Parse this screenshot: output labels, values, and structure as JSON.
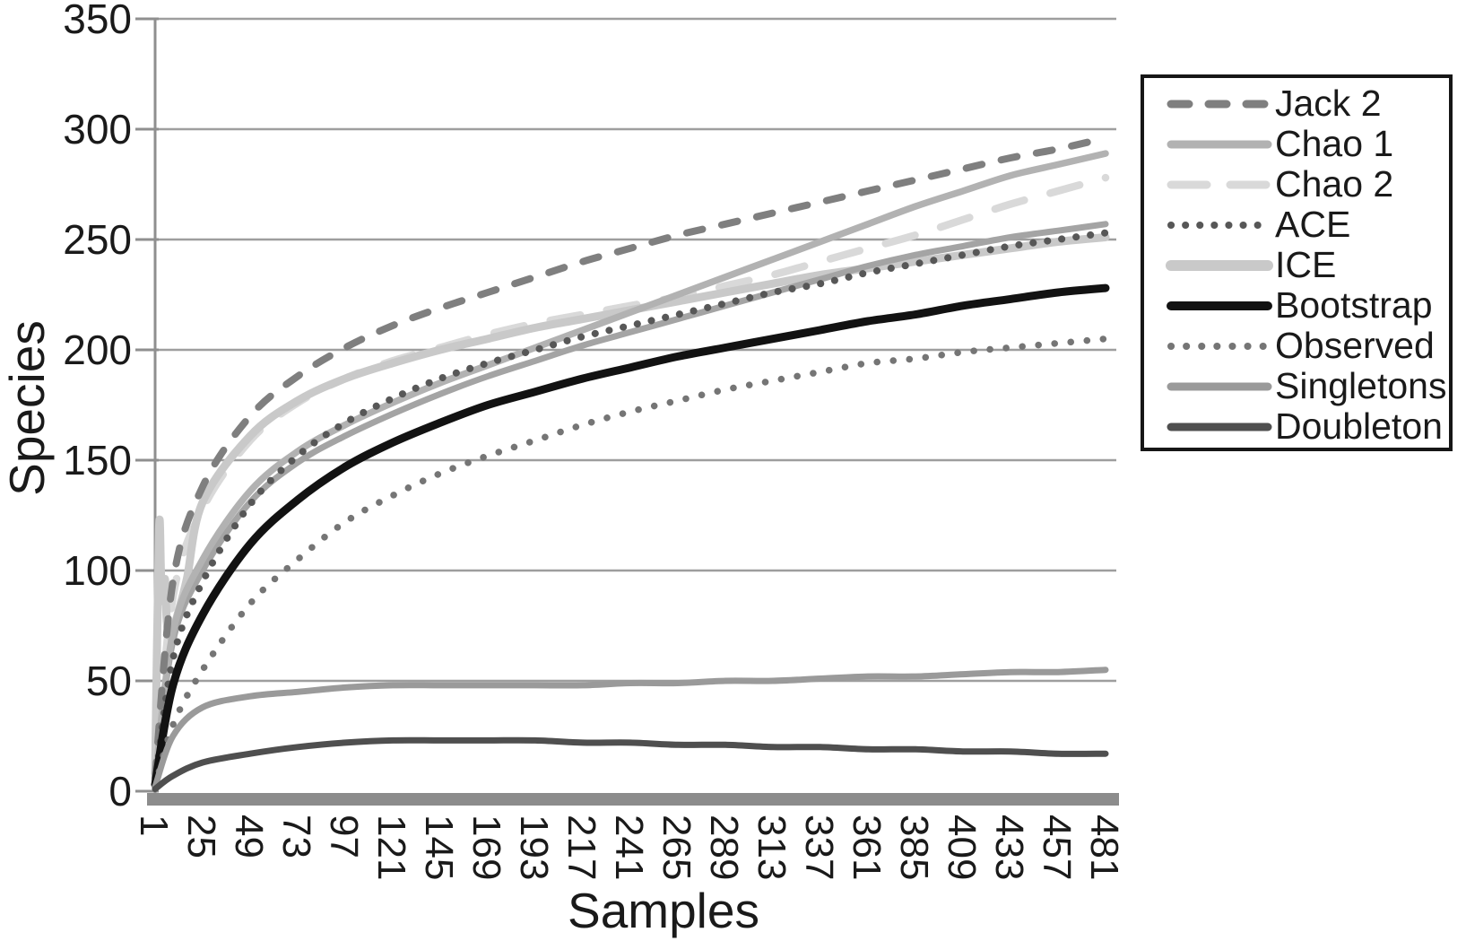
{
  "chart_data": {
    "type": "line",
    "title": "",
    "xlabel": "Samples",
    "ylabel": "Species",
    "xlim": [
      1,
      481
    ],
    "ylim": [
      0,
      350
    ],
    "x_ticks": [
      1,
      25,
      49,
      73,
      97,
      121,
      145,
      169,
      193,
      217,
      241,
      265,
      289,
      313,
      337,
      361,
      385,
      409,
      433,
      457,
      481
    ],
    "y_ticks": [
      0,
      50,
      100,
      150,
      200,
      250,
      300,
      350
    ],
    "grid": "horizontal",
    "legend_position": "right",
    "legend_border_color": "#161616",
    "axis_color": "#8f8f8f",
    "gridline_color": "#9e9e9e",
    "baseline_bar_color": "#8c8c8c",
    "text_color": "#1a1a1a",
    "series": [
      {
        "key": "chao2",
        "name": "Chao 2",
        "legend": true,
        "legend_order": 2,
        "style": {
          "color": "#d9d9d9",
          "width": 8.5,
          "dash": [
            34,
            30
          ],
          "cap": "round"
        },
        "x": [
          1,
          10,
          25,
          49,
          73,
          97,
          121,
          145,
          169,
          193,
          217,
          241,
          265,
          289,
          313,
          337,
          361,
          385,
          409,
          433,
          457,
          481
        ],
        "y": [
          5,
          88,
          128,
          159,
          176,
          187,
          195,
          201,
          207,
          212,
          216,
          220,
          224,
          229,
          234,
          240,
          246,
          252,
          259,
          266,
          272,
          278
        ]
      },
      {
        "key": "ice",
        "name": "ICE",
        "legend": true,
        "legend_order": 4,
        "style": {
          "color": "#c9c9c9",
          "width": 9,
          "dash": null,
          "cap": "round"
        },
        "x": [
          1,
          3,
          4,
          5,
          6,
          7,
          9,
          12,
          17,
          25,
          49,
          73,
          97,
          121,
          145,
          169,
          193,
          217,
          241,
          265,
          289,
          313,
          337,
          361,
          385,
          409,
          433,
          457,
          481
        ],
        "y": [
          8,
          119,
          98,
          86,
          96,
          76,
          70,
          79,
          96,
          131,
          161,
          177,
          187,
          194,
          200,
          205,
          210,
          214,
          218,
          222,
          226,
          230,
          234,
          237,
          240,
          243,
          246,
          249,
          251
        ]
      },
      {
        "key": "unlabeled-gray",
        "name": "(unlabeled solid gray curve)",
        "legend": false,
        "style": {
          "color": "#a4a4a4",
          "width": 7,
          "dash": null,
          "cap": "round"
        },
        "x": [
          1,
          10,
          25,
          49,
          73,
          97,
          121,
          145,
          169,
          193,
          217,
          241,
          265,
          289,
          313,
          337,
          361,
          385,
          409,
          433,
          457,
          481
        ],
        "y": [
          5,
          68,
          100,
          131,
          149,
          161,
          171,
          180,
          188,
          195,
          202,
          208,
          214,
          220,
          226,
          232,
          238,
          243,
          247,
          251,
          254,
          257
        ]
      },
      {
        "key": "chao1",
        "name": "Chao 1",
        "legend": true,
        "legend_order": 1,
        "style": {
          "color": "#b2b2b2",
          "width": 7.5,
          "dash": null,
          "cap": "round"
        },
        "x": [
          1,
          10,
          25,
          49,
          73,
          97,
          121,
          145,
          169,
          193,
          217,
          241,
          265,
          289,
          313,
          337,
          361,
          385,
          409,
          433,
          457,
          481
        ],
        "y": [
          5,
          72,
          105,
          136,
          154,
          166,
          176,
          185,
          193,
          201,
          209,
          217,
          225,
          233,
          241,
          249,
          257,
          265,
          272,
          279,
          284,
          289
        ]
      },
      {
        "key": "jack2",
        "name": "Jack 2",
        "legend": true,
        "legend_order": 0,
        "style": {
          "color": "#7f7f7f",
          "width": 8,
          "dash": [
            18,
            22
          ],
          "cap": "round"
        },
        "x": [
          1,
          10,
          25,
          49,
          73,
          97,
          121,
          145,
          169,
          193,
          217,
          241,
          265,
          289,
          313,
          337,
          361,
          385,
          409,
          433,
          457,
          481
        ],
        "y": [
          6,
          95,
          138,
          170,
          188,
          201,
          211,
          219,
          226,
          233,
          240,
          246,
          252,
          257,
          262,
          267,
          272,
          277,
          282,
          287,
          291,
          296
        ]
      },
      {
        "key": "ace",
        "name": "ACE",
        "legend": true,
        "legend_order": 3,
        "style": {
          "color": "#575757",
          "width": 8,
          "dash": [
            0.1,
            16
          ],
          "cap": "round"
        },
        "x": [
          1,
          10,
          25,
          49,
          73,
          97,
          121,
          145,
          169,
          193,
          217,
          241,
          265,
          289,
          313,
          337,
          361,
          385,
          409,
          433,
          457,
          481
        ],
        "y": [
          3,
          60,
          95,
          130,
          152,
          167,
          178,
          187,
          194,
          200,
          206,
          211,
          216,
          221,
          226,
          230,
          235,
          239,
          243,
          247,
          250,
          253
        ]
      },
      {
        "key": "bootstrap",
        "name": "Bootstrap",
        "legend": true,
        "legend_order": 5,
        "style": {
          "color": "#121212",
          "width": 9,
          "dash": null,
          "cap": "round"
        },
        "x": [
          1,
          10,
          25,
          49,
          73,
          97,
          121,
          145,
          169,
          193,
          217,
          241,
          265,
          289,
          313,
          337,
          361,
          385,
          409,
          433,
          457,
          481
        ],
        "y": [
          3,
          48,
          80,
          112,
          132,
          147,
          158,
          167,
          175,
          181,
          187,
          192,
          197,
          201,
          205,
          209,
          213,
          216,
          220,
          223,
          226,
          228
        ]
      },
      {
        "key": "observed",
        "name": "Observed",
        "legend": true,
        "legend_order": 6,
        "style": {
          "color": "#757575",
          "width": 7.5,
          "dash": [
            0.1,
            18
          ],
          "cap": "round"
        },
        "x": [
          1,
          10,
          25,
          49,
          73,
          97,
          121,
          145,
          169,
          193,
          217,
          241,
          265,
          289,
          313,
          337,
          361,
          385,
          409,
          433,
          457,
          481
        ],
        "y": [
          2,
          30,
          55,
          85,
          105,
          122,
          134,
          144,
          152,
          159,
          166,
          172,
          177,
          182,
          186,
          190,
          194,
          196,
          199,
          201,
          203,
          205
        ]
      },
      {
        "key": "singletons",
        "name": "Singletons",
        "legend": true,
        "legend_order": 7,
        "style": {
          "color": "#9a9a9a",
          "width": 7,
          "dash": null,
          "cap": "round"
        },
        "x": [
          1,
          10,
          25,
          49,
          73,
          97,
          121,
          145,
          169,
          193,
          217,
          241,
          265,
          289,
          313,
          337,
          361,
          385,
          409,
          433,
          457,
          481
        ],
        "y": [
          2,
          25,
          38,
          43,
          45,
          47,
          48,
          48,
          48,
          48,
          48,
          49,
          49,
          50,
          50,
          51,
          52,
          52,
          53,
          54,
          54,
          55
        ]
      },
      {
        "key": "doubleton",
        "name": "Doubleton",
        "legend": true,
        "legend_order": 8,
        "style": {
          "color": "#4f4f4f",
          "width": 7,
          "dash": null,
          "cap": "round"
        },
        "x": [
          1,
          10,
          25,
          49,
          73,
          97,
          121,
          145,
          169,
          193,
          217,
          241,
          265,
          289,
          313,
          337,
          361,
          385,
          409,
          433,
          457,
          481
        ],
        "y": [
          1,
          7,
          13,
          17,
          20,
          22,
          23,
          23,
          23,
          23,
          22,
          22,
          21,
          21,
          20,
          20,
          19,
          19,
          18,
          18,
          17,
          17
        ]
      }
    ],
    "legend_swatches": {
      "jack2": {
        "width": 9,
        "dash": [
          20,
          22
        ]
      },
      "chao1": {
        "width": 9,
        "dash": null
      },
      "chao2": {
        "width": 9,
        "dash": [
          40,
          26
        ]
      },
      "ace": {
        "width": 8,
        "dash": [
          0.1,
          16
        ]
      },
      "ice": {
        "width": 12,
        "dash": null
      },
      "bootstrap": {
        "width": 10,
        "dash": null
      },
      "observed": {
        "width": 8,
        "dash": [
          0.1,
          17
        ]
      },
      "singletons": {
        "width": 9,
        "dash": null
      },
      "doubleton": {
        "width": 9,
        "dash": null
      }
    }
  }
}
